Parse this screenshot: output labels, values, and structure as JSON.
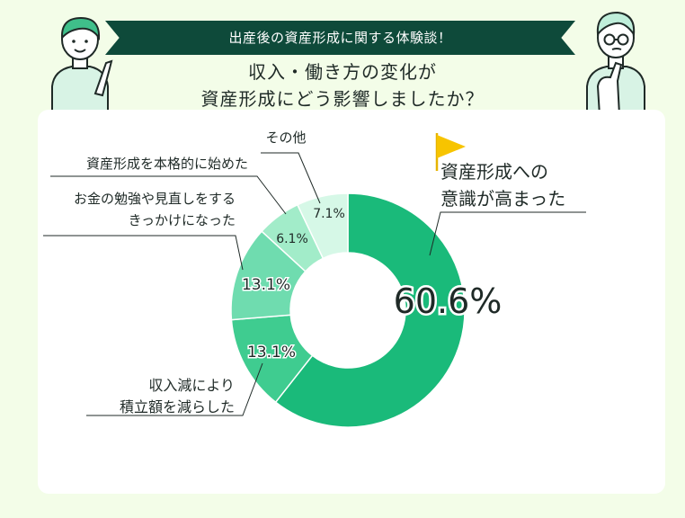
{
  "banner_text": "出産後の資産形成に関する体験談！",
  "question_lines": [
    "収入・働き方の変化が",
    "資産形成にどう影響しましたか？"
  ],
  "colors": {
    "background": "#f3fde8",
    "banner": "#0e4a3a",
    "card": "#ffffff",
    "flag": "#f7c400",
    "slice_1": "#1aba7a",
    "slice_2": "#3fcc90",
    "slice_3": "#6fdcaf",
    "slice_4": "#a2ecc9",
    "slice_5": "#d6f8e7"
  },
  "icons": [
    "flag-icon",
    "person-left-illustration",
    "person-right-illustration"
  ],
  "chart_data": {
    "type": "pie",
    "variant": "donut",
    "slices": [
      {
        "label_lines": [
          "資産形成への",
          "意識が高まった"
        ],
        "value": 60.6,
        "value_text": "60.6%"
      },
      {
        "label_lines": [
          "収入減により",
          "積立額を減らした"
        ],
        "value": 13.1,
        "value_text": "13.1%"
      },
      {
        "label_lines": [
          "お金の勉強や見直しをする",
          "きっかけになった"
        ],
        "value": 13.1,
        "value_text": "13.1%"
      },
      {
        "label_lines": [
          "資産形成を本格的に始めた"
        ],
        "value": 6.1,
        "value_text": "6.1%"
      },
      {
        "label_lines": [
          "その他"
        ],
        "value": 7.1,
        "value_text": "7.1%"
      }
    ]
  }
}
